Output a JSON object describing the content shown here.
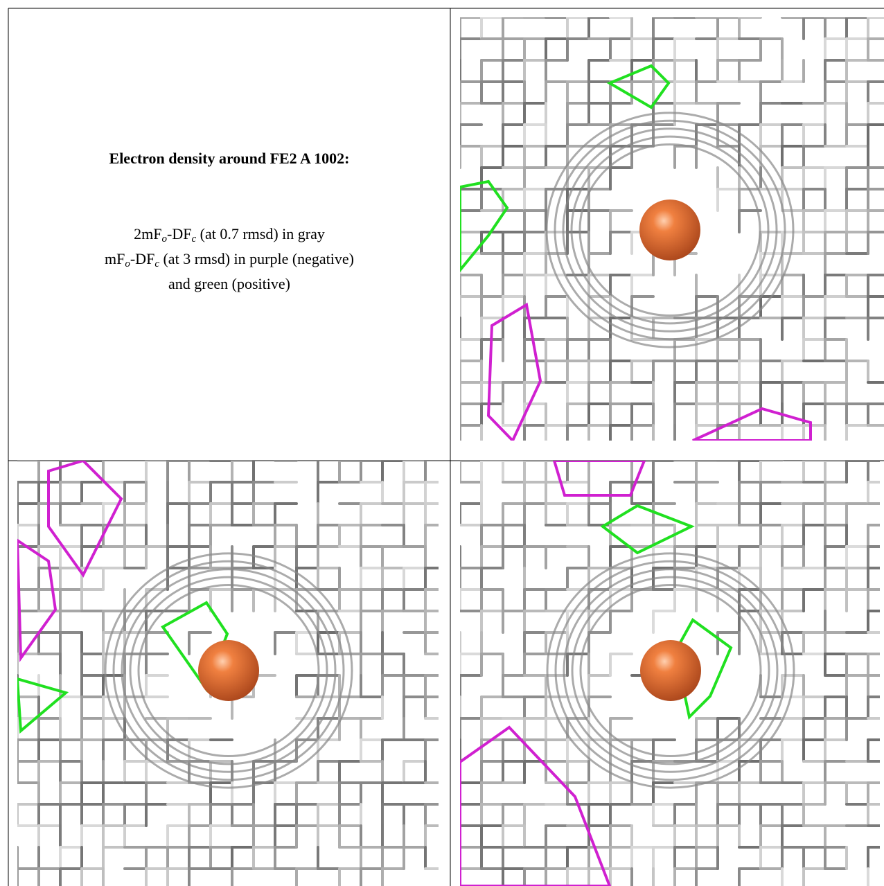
{
  "caption": {
    "title": "Electron density around FE2 A 1002:",
    "legend": [
      {
        "parts": [
          "2mF",
          "o",
          "-DF",
          "c",
          " (at 0.7 rmsd) in gray"
        ]
      },
      {
        "parts": [
          "mF",
          "o",
          "-DF",
          "c",
          " (at 3 rmsd) in purple (negative)"
        ]
      },
      {
        "parts": [
          "and green (positive)"
        ]
      }
    ]
  }
}
